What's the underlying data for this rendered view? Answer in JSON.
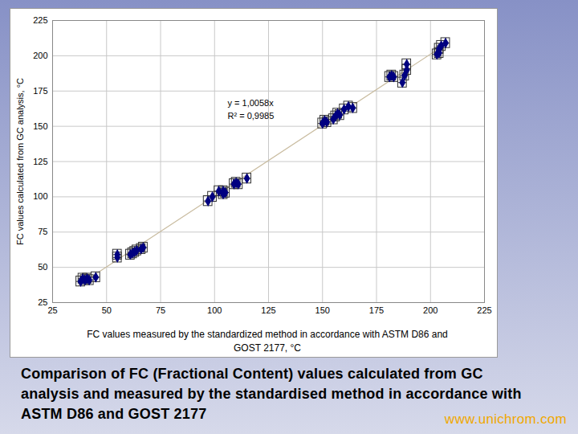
{
  "chart_data": {
    "type": "scatter",
    "x_label": "FC values measured by the standardized method in accordance with ASTM D86 and\nGOST 2177, °C",
    "y_label": "FC values calculated from GC analysis, °C",
    "annotations": [
      "y = 1,0058x",
      "R² = 0,9985"
    ],
    "trendline": {
      "slope": 1.0058,
      "x_range": [
        37,
        207
      ]
    },
    "caption": "Comparison of FC (Fractional Content) values calculated from GC analysis and measured by the standardised method in accordance with ASTM D86 and GOST 2177",
    "website": "www.unichrom.com",
    "x": [
      38,
      39,
      40,
      41,
      42,
      45,
      55,
      55,
      61,
      62,
      63,
      64,
      66,
      67,
      97,
      99,
      102,
      104,
      104,
      105,
      109,
      110,
      111,
      115,
      150,
      151,
      152,
      155,
      156,
      157,
      158,
      160,
      162,
      164,
      181,
      182,
      183,
      187,
      188,
      189,
      189,
      203,
      204,
      204,
      205,
      207
    ],
    "values": [
      40,
      42,
      41,
      42,
      41,
      43,
      57,
      59,
      59,
      60,
      61,
      62,
      63,
      64,
      97,
      100,
      104,
      104,
      102,
      103,
      109,
      110,
      109,
      113,
      152,
      154,
      153,
      155,
      157,
      159,
      158,
      162,
      164,
      163,
      185,
      186,
      185,
      181,
      186,
      190,
      194,
      201,
      202,
      205,
      207,
      209
    ],
    "x_error": 2,
    "y_error": 3.5,
    "color": "#000080",
    "marker": "diamond",
    "xlim": [
      25,
      225
    ],
    "ylim": [
      25,
      225
    ],
    "xticks": [
      25,
      50,
      75,
      100,
      125,
      150,
      175,
      200,
      225
    ],
    "yticks": [
      25,
      50,
      75,
      100,
      125,
      150,
      175,
      200,
      225
    ],
    "grid": true
  }
}
